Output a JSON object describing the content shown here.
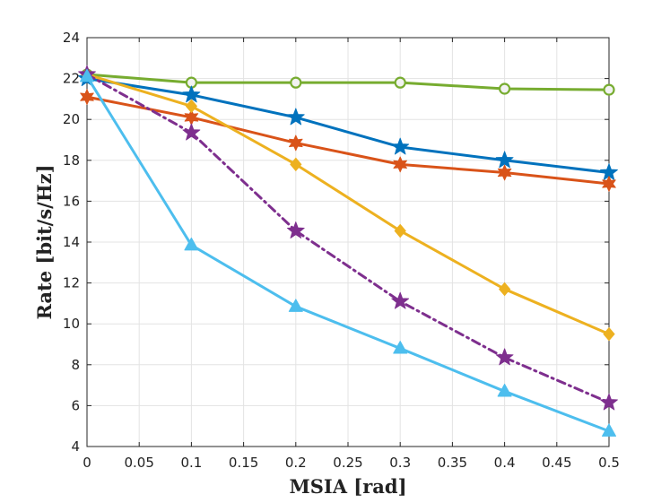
{
  "chart_data": {
    "type": "line",
    "title": "",
    "xlabel": "MSIA [rad]",
    "ylabel": "Rate [bit/s/Hz]",
    "xlim": [
      0,
      0.5
    ],
    "ylim": [
      4,
      24
    ],
    "grid": true,
    "x_ticks": [
      "0",
      "0.05",
      "0.1",
      "0.15",
      "0.2",
      "0.25",
      "0.3",
      "0.35",
      "0.4",
      "0.45",
      "0.5"
    ],
    "y_ticks": [
      "4",
      "6",
      "8",
      "10",
      "12",
      "14",
      "16",
      "18",
      "20",
      "22",
      "24"
    ],
    "x": [
      0,
      0.1,
      0.2,
      0.3,
      0.4,
      0.5
    ],
    "series": [
      {
        "name": "green-circle",
        "color": "#77ac30",
        "marker": "circle",
        "dash": "solid",
        "values": [
          22.2,
          21.8,
          21.8,
          21.8,
          21.5,
          21.45
        ]
      },
      {
        "name": "blue-star",
        "color": "#0072bd",
        "marker": "star",
        "dash": "solid",
        "values": [
          22.0,
          21.2,
          20.1,
          18.65,
          18.0,
          17.4
        ]
      },
      {
        "name": "red-star",
        "color": "#d95319",
        "marker": "star6",
        "dash": "solid",
        "values": [
          21.1,
          20.1,
          18.85,
          17.8,
          17.4,
          16.85
        ]
      },
      {
        "name": "yellow-diamond",
        "color": "#edb120",
        "marker": "diamond",
        "dash": "solid",
        "values": [
          22.2,
          20.65,
          17.8,
          14.55,
          11.7,
          9.5
        ]
      },
      {
        "name": "purple-star",
        "color": "#7e2f8e",
        "marker": "star",
        "dash": "dashdot",
        "values": [
          22.2,
          19.35,
          14.55,
          11.1,
          8.35,
          6.15
        ]
      },
      {
        "name": "cyan-triangle",
        "color": "#4dbeee",
        "marker": "triangle",
        "dash": "solid",
        "values": [
          22.1,
          13.85,
          10.85,
          8.8,
          6.7,
          4.75
        ]
      }
    ]
  }
}
